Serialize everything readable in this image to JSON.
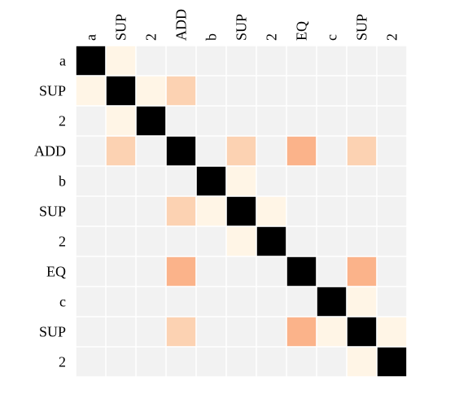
{
  "chart_data": {
    "type": "heatmap",
    "x_labels": [
      "a",
      "SUP",
      "2",
      "ADD",
      "b",
      "SUP",
      "2",
      "EQ",
      "c",
      "SUP",
      "2"
    ],
    "y_labels": [
      "a",
      "SUP",
      "2",
      "ADD",
      "b",
      "SUP",
      "2",
      "EQ",
      "c",
      "SUP",
      "2"
    ],
    "values": [
      [
        1.0,
        0.05,
        0,
        0,
        0,
        0,
        0,
        0,
        0,
        0,
        0
      ],
      [
        0.05,
        1.0,
        0.05,
        0.2,
        0,
        0,
        0,
        0,
        0,
        0,
        0
      ],
      [
        0,
        0.05,
        1.0,
        0,
        0,
        0,
        0,
        0,
        0,
        0,
        0
      ],
      [
        0,
        0.2,
        0,
        1.0,
        0,
        0.2,
        0,
        0.35,
        0,
        0.2,
        0
      ],
      [
        0,
        0,
        0,
        0,
        1.0,
        0.05,
        0,
        0,
        0,
        0,
        0
      ],
      [
        0,
        0,
        0,
        0.2,
        0.05,
        1.0,
        0.05,
        0,
        0,
        0,
        0
      ],
      [
        0,
        0,
        0,
        0,
        0,
        0.05,
        1.0,
        0,
        0,
        0,
        0
      ],
      [
        0,
        0,
        0,
        0.35,
        0,
        0,
        0,
        1.0,
        0,
        0.35,
        0
      ],
      [
        0,
        0,
        0,
        0,
        0,
        0,
        0,
        0,
        1.0,
        0.05,
        0
      ],
      [
        0,
        0,
        0,
        0.2,
        0,
        0,
        0,
        0.35,
        0.05,
        1.0,
        0.05
      ],
      [
        0,
        0,
        0,
        0,
        0,
        0,
        0,
        0,
        0,
        0.05,
        1.0
      ]
    ],
    "color_scale": {
      "zero": "#f2f2f2",
      "low": "#fff5e6",
      "mid": "#fcd2b2",
      "high": "#fbb38a",
      "max": "#000000"
    },
    "gridlines": "white",
    "title": "",
    "xlabel": "",
    "ylabel": ""
  }
}
